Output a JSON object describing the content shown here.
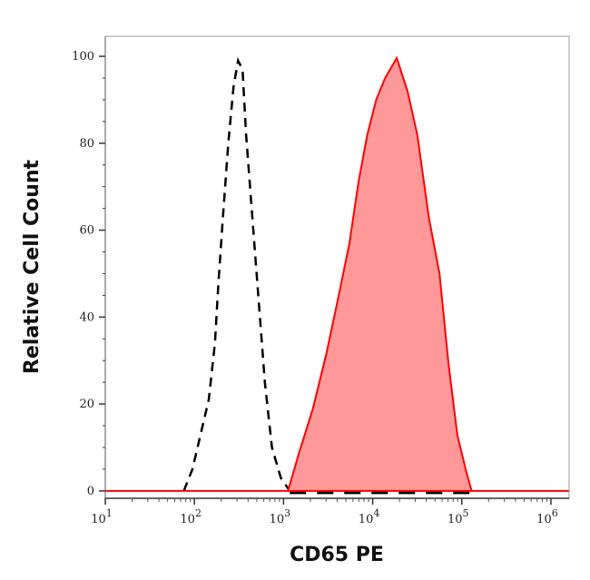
{
  "chart_data": {
    "type": "area",
    "title": "",
    "xlabel": "CD65 PE",
    "ylabel": "Relative Cell Count",
    "x_scale": "log",
    "xlim": [
      10,
      1600000
    ],
    "ylim": [
      -1.7,
      104.6
    ],
    "x_ticks": [
      {
        "base": "10",
        "exp": "1",
        "value": 10
      },
      {
        "base": "10",
        "exp": "2",
        "value": 100
      },
      {
        "base": "10",
        "exp": "3",
        "value": 1000
      },
      {
        "base": "10",
        "exp": "4",
        "value": 10000
      },
      {
        "base": "10",
        "exp": "5",
        "value": 100000
      },
      {
        "base": "10",
        "exp": "6",
        "value": 1000000
      }
    ],
    "y_ticks": [
      "0",
      "20",
      "40",
      "60",
      "80",
      "100"
    ],
    "grid": false,
    "series": [
      {
        "style": "dashed-line",
        "color": "#000000",
        "x": [
          76,
          95,
          145,
          170,
          186,
          209,
          240,
          275,
          309,
          347,
          380,
          447,
          525,
          617,
          741,
          933,
          1175
        ],
        "y": [
          0,
          5,
          21,
          34,
          48,
          63,
          80,
          93,
          99,
          97,
          82,
          63,
          44,
          25,
          10,
          3,
          0
        ]
      },
      {
        "style": "filled-area",
        "color": "#ff0000",
        "fill": "#ff9999",
        "x": [
          1122,
          1479,
          2138,
          3020,
          4266,
          5495,
          6918,
          8710,
          10965,
          13804,
          18621,
          24547,
          31623,
          42658,
          56234,
          70795,
          89125,
          112202,
          128825
        ],
        "y": [
          0,
          8.5,
          19,
          31.5,
          46,
          57,
          71,
          82,
          90,
          95,
          99.6,
          92,
          82,
          63,
          50,
          29.5,
          12.8,
          4.4,
          0
        ]
      }
    ]
  }
}
